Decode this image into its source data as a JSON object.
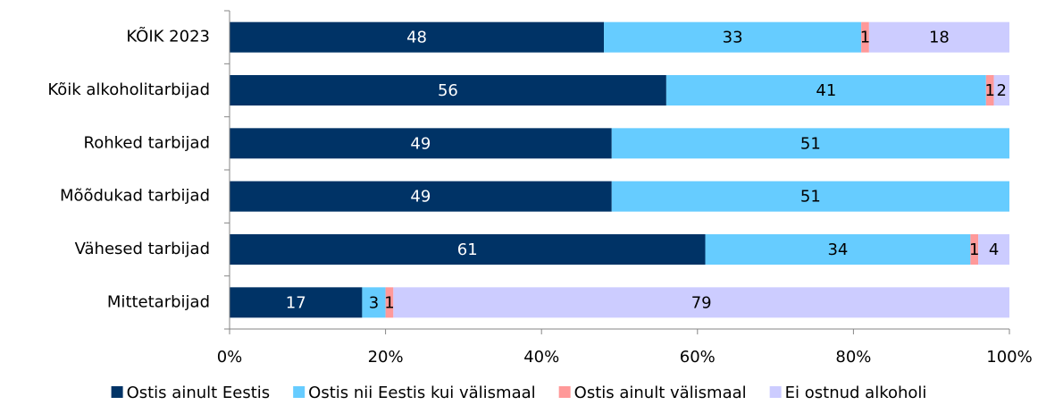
{
  "chart_data": {
    "type": "bar",
    "orientation": "horizontal",
    "stacked": true,
    "categories": [
      "KÕIK 2023",
      "Kõik alkoholitarbijad",
      "Rohked tarbijad",
      "Mõõdukad tarbijad",
      "Vähesed tarbijad",
      "Mittetarbijad"
    ],
    "series": [
      {
        "name": "Ostis ainult Eestis",
        "color": "#003366",
        "values": [
          48,
          56,
          49,
          49,
          61,
          17
        ]
      },
      {
        "name": "Ostis nii Eestis kui välismaal",
        "color": "#66ccff",
        "values": [
          33,
          41,
          51,
          51,
          34,
          3
        ]
      },
      {
        "name": "Ostis ainult välismaal",
        "color": "#ff9999",
        "values": [
          1,
          1,
          null,
          null,
          1,
          1
        ]
      },
      {
        "name": "Ei ostnud alkoholi",
        "color": "#ccccff",
        "values": [
          18,
          2,
          null,
          null,
          4,
          79
        ]
      }
    ],
    "xlim": [
      0,
      100
    ],
    "xticks": [
      {
        "value": 0,
        "label": "0%"
      },
      {
        "value": 20,
        "label": "20%"
      },
      {
        "value": 40,
        "label": "40%"
      },
      {
        "value": 60,
        "label": "60%"
      },
      {
        "value": 80,
        "label": "80%"
      },
      {
        "value": 100,
        "label": "100%"
      }
    ],
    "legend": "bottom"
  }
}
